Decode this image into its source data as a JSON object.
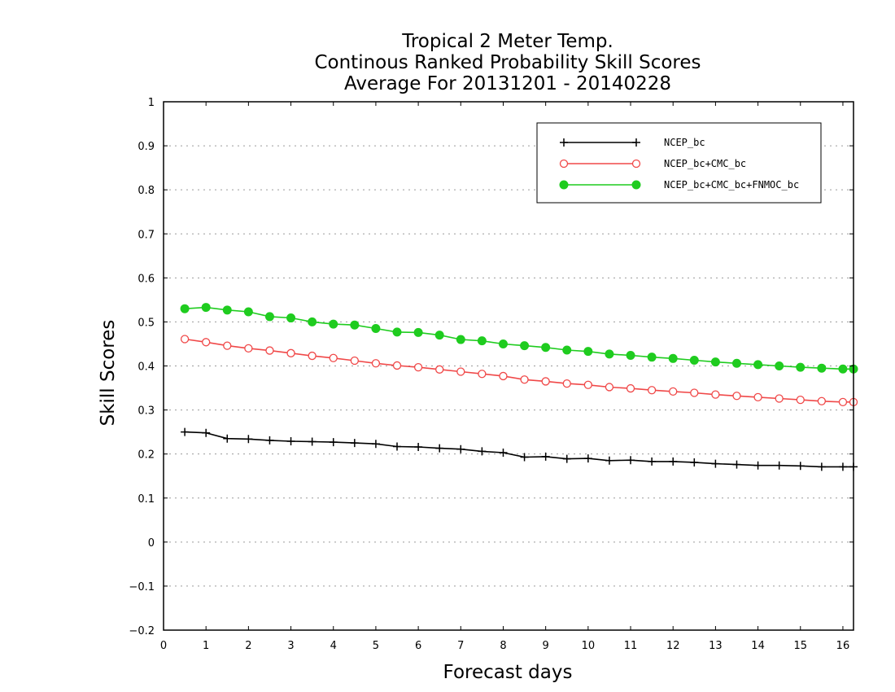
{
  "chart_data": {
    "type": "line",
    "title": [
      "Tropical 2 Meter Temp.",
      "Continous Ranked Probability Skill Scores",
      "Average For 20131201 - 20140228"
    ],
    "xlabel": "Forecast days",
    "ylabel": "Skill Scores",
    "xlim": [
      0,
      16.25
    ],
    "ylim": [
      -0.2,
      1.0
    ],
    "xticks": [
      "0",
      "1",
      "2",
      "3",
      "4",
      "5",
      "6",
      "7",
      "8",
      "9",
      "10",
      "11",
      "12",
      "13",
      "14",
      "15",
      "16"
    ],
    "yticks": [
      "-0.2",
      "-0.1",
      "0",
      "0.1",
      "0.2",
      "0.3",
      "0.4",
      "0.5",
      "0.6",
      "0.7",
      "0.8",
      "0.9",
      "1"
    ],
    "grid": "horizontal dotted",
    "legend_position": "top-right",
    "x": [
      0.5,
      1,
      1.5,
      2,
      2.5,
      3,
      3.5,
      4,
      4.5,
      5,
      5.5,
      6,
      6.5,
      7,
      7.5,
      8,
      8.5,
      9,
      9.5,
      10,
      10.5,
      11,
      11.5,
      12,
      12.5,
      13,
      13.5,
      14,
      14.5,
      15,
      15.5,
      16,
      16.25
    ],
    "series": [
      {
        "name": "NCEP_bc",
        "color": "#000000",
        "marker": "plus",
        "values": [
          0.25,
          0.248,
          0.235,
          0.234,
          0.231,
          0.229,
          0.228,
          0.227,
          0.225,
          0.223,
          0.217,
          0.216,
          0.213,
          0.211,
          0.206,
          0.203,
          0.193,
          0.194,
          0.189,
          0.19,
          0.185,
          0.186,
          0.183,
          0.183,
          0.181,
          0.178,
          0.176,
          0.174,
          0.174,
          0.173,
          0.171,
          0.171,
          0.171
        ]
      },
      {
        "name": "NCEP_bc+CMC_bc",
        "color": "#f04848",
        "marker": "open-circle",
        "values": [
          0.461,
          0.454,
          0.446,
          0.44,
          0.435,
          0.429,
          0.423,
          0.418,
          0.412,
          0.406,
          0.401,
          0.397,
          0.392,
          0.387,
          0.382,
          0.377,
          0.369,
          0.365,
          0.36,
          0.357,
          0.352,
          0.349,
          0.345,
          0.342,
          0.339,
          0.335,
          0.332,
          0.329,
          0.326,
          0.323,
          0.32,
          0.318,
          0.318
        ]
      },
      {
        "name": "NCEP_bc+CMC_bc+FNMOC_bc",
        "color": "#1fcc1f",
        "marker": "filled-circle",
        "values": [
          0.53,
          0.533,
          0.527,
          0.523,
          0.512,
          0.509,
          0.5,
          0.495,
          0.493,
          0.485,
          0.477,
          0.476,
          0.47,
          0.46,
          0.457,
          0.45,
          0.446,
          0.442,
          0.436,
          0.433,
          0.427,
          0.424,
          0.42,
          0.417,
          0.413,
          0.409,
          0.406,
          0.403,
          0.4,
          0.397,
          0.395,
          0.393,
          0.393
        ]
      }
    ]
  }
}
